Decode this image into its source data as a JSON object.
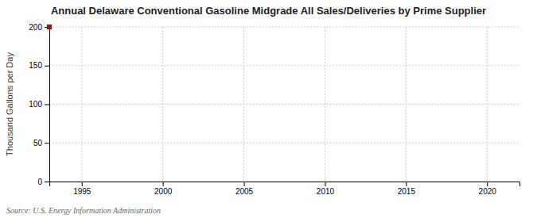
{
  "chart_data": {
    "type": "scatter",
    "title": "Annual Delaware Conventional Gasoline Midgrade All Sales/Deliveries by Prime Supplier",
    "ylabel": "Thousand Gallons per Day",
    "source": "Source: U.S. Energy Information Administration",
    "x": [
      1993
    ],
    "values": [
      200
    ],
    "color": "#8b1a1a",
    "marker": "square",
    "xlim": [
      1993,
      2022
    ],
    "ylim": [
      0,
      200
    ],
    "xticks": [
      1995,
      2000,
      2005,
      2010,
      2015,
      2020
    ],
    "yticks": [
      0,
      50,
      100,
      150,
      200
    ],
    "grid": true
  }
}
